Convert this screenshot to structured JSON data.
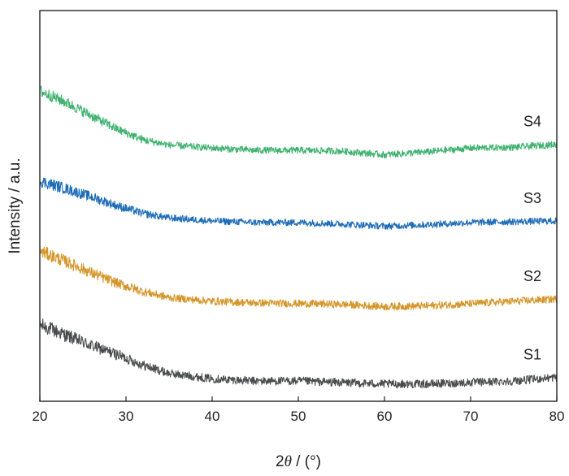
{
  "chart_data": {
    "type": "line",
    "xlabel_prefix": "2",
    "xlabel_symbol": "θ",
    "xlabel_suffix": " / (°)",
    "ylabel": "Intensity / a.u.",
    "xlim": [
      20,
      80
    ],
    "xticks": [
      20,
      30,
      40,
      50,
      60,
      70,
      80
    ],
    "yticks": [],
    "ylim": [
      0,
      5.2
    ],
    "grid": false,
    "legend": "none (series labelled at right end of each trace)",
    "series": [
      {
        "name": "S1",
        "color": "#4a4d4d",
        "noise": 0.055,
        "points": [
          [
            20,
            1.02
          ],
          [
            23,
            0.88
          ],
          [
            26,
            0.74
          ],
          [
            29,
            0.62
          ],
          [
            32,
            0.48
          ],
          [
            35,
            0.37
          ],
          [
            40,
            0.3
          ],
          [
            45,
            0.27
          ],
          [
            50,
            0.27
          ],
          [
            55,
            0.25
          ],
          [
            60,
            0.23
          ],
          [
            65,
            0.23
          ],
          [
            70,
            0.25
          ],
          [
            75,
            0.27
          ],
          [
            80,
            0.32
          ]
        ]
      },
      {
        "name": "S2",
        "color": "#d4962a",
        "noise": 0.05,
        "points": [
          [
            20,
            2.0
          ],
          [
            23,
            1.86
          ],
          [
            26,
            1.71
          ],
          [
            29,
            1.57
          ],
          [
            32,
            1.46
          ],
          [
            35,
            1.38
          ],
          [
            40,
            1.33
          ],
          [
            45,
            1.31
          ],
          [
            50,
            1.3
          ],
          [
            55,
            1.29
          ],
          [
            60,
            1.26
          ],
          [
            65,
            1.27
          ],
          [
            70,
            1.3
          ],
          [
            75,
            1.33
          ],
          [
            80,
            1.36
          ]
        ]
      },
      {
        "name": "S3",
        "color": "#1f6db7",
        "noise": 0.045,
        "points": [
          [
            20,
            2.93
          ],
          [
            23,
            2.83
          ],
          [
            26,
            2.72
          ],
          [
            29,
            2.6
          ],
          [
            32,
            2.5
          ],
          [
            35,
            2.44
          ],
          [
            40,
            2.4
          ],
          [
            45,
            2.38
          ],
          [
            50,
            2.38
          ],
          [
            55,
            2.36
          ],
          [
            60,
            2.33
          ],
          [
            65,
            2.35
          ],
          [
            70,
            2.38
          ],
          [
            75,
            2.39
          ],
          [
            80,
            2.4
          ]
        ]
      },
      {
        "name": "S4",
        "color": "#3fb26f",
        "noise": 0.045,
        "points": [
          [
            20,
            4.13
          ],
          [
            23,
            3.98
          ],
          [
            26,
            3.8
          ],
          [
            29,
            3.62
          ],
          [
            32,
            3.48
          ],
          [
            35,
            3.41
          ],
          [
            40,
            3.37
          ],
          [
            45,
            3.34
          ],
          [
            50,
            3.34
          ],
          [
            55,
            3.33
          ],
          [
            60,
            3.28
          ],
          [
            65,
            3.32
          ],
          [
            70,
            3.37
          ],
          [
            75,
            3.38
          ],
          [
            80,
            3.42
          ]
        ]
      }
    ]
  }
}
